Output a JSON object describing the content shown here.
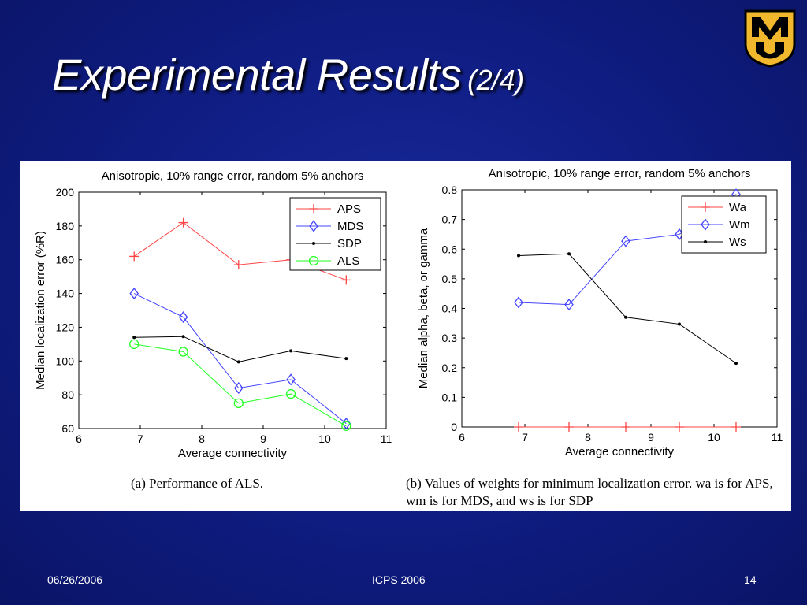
{
  "slide": {
    "title": "Experimental Results",
    "title_suffix": "(2/4)",
    "footer_date": "06/26/2006",
    "footer_center": "ICPS 2006",
    "footer_page": "14",
    "background_color": "#101e86",
    "logo_text": "MU",
    "logo_colors": {
      "primary": "#f1b82d",
      "secondary": "#000000"
    }
  },
  "captions": {
    "a": "(a) Performance of ALS.",
    "b": "(b) Values of weights for minimum localization error. wa is for APS, wm is for MDS, and ws is for SDP"
  },
  "chart_data": [
    {
      "type": "line",
      "title": "Anisotropic, 10% range error, random 5% anchors",
      "xlabel": "Average connectivity",
      "ylabel": "Median localization error (%R)",
      "xlim": [
        6,
        11
      ],
      "ylim": [
        60,
        200
      ],
      "xticks": [
        6,
        7,
        8,
        9,
        10,
        11
      ],
      "yticks": [
        60,
        80,
        100,
        120,
        140,
        160,
        180,
        200
      ],
      "grid": false,
      "legend_position": "top-right",
      "x": [
        6.9,
        7.7,
        8.6,
        9.45,
        10.35
      ],
      "series": [
        {
          "name": "APS",
          "color": "#ff4444",
          "marker": "plus",
          "values": [
            162,
            182,
            157,
            160,
            148
          ]
        },
        {
          "name": "MDS",
          "color": "#4444ff",
          "marker": "diamond",
          "values": [
            140,
            126,
            84,
            89,
            63
          ]
        },
        {
          "name": "SDP",
          "color": "#000000",
          "marker": "dot",
          "values": [
            114,
            114.5,
            99.5,
            106,
            101.5
          ]
        },
        {
          "name": "ALS",
          "color": "#22ff22",
          "marker": "circle",
          "values": [
            110,
            105.5,
            75,
            80.5,
            61.5
          ]
        }
      ]
    },
    {
      "type": "line",
      "title": "Anisotropic, 10% range error, random 5% anchors",
      "xlabel": "Average connectivity",
      "ylabel": "Median alpha, beta, or gamma",
      "xlim": [
        6,
        11
      ],
      "ylim": [
        0,
        0.8
      ],
      "xticks": [
        6,
        7,
        8,
        9,
        10,
        11
      ],
      "yticks": [
        0,
        0.1,
        0.2,
        0.3,
        0.4,
        0.5,
        0.6,
        0.7,
        0.8
      ],
      "grid": false,
      "legend_position": "top-right",
      "x": [
        6.9,
        7.7,
        8.6,
        9.45,
        10.35
      ],
      "series": [
        {
          "name": "Wa",
          "color": "#ff4444",
          "marker": "plus",
          "values": [
            0,
            0,
            0,
            0,
            0
          ]
        },
        {
          "name": "Wm",
          "color": "#4444ff",
          "marker": "diamond",
          "values": [
            0.42,
            0.413,
            0.627,
            0.65,
            0.785
          ]
        },
        {
          "name": "Ws",
          "color": "#000000",
          "marker": "dot",
          "values": [
            0.578,
            0.584,
            0.37,
            0.347,
            0.215
          ]
        }
      ]
    }
  ]
}
